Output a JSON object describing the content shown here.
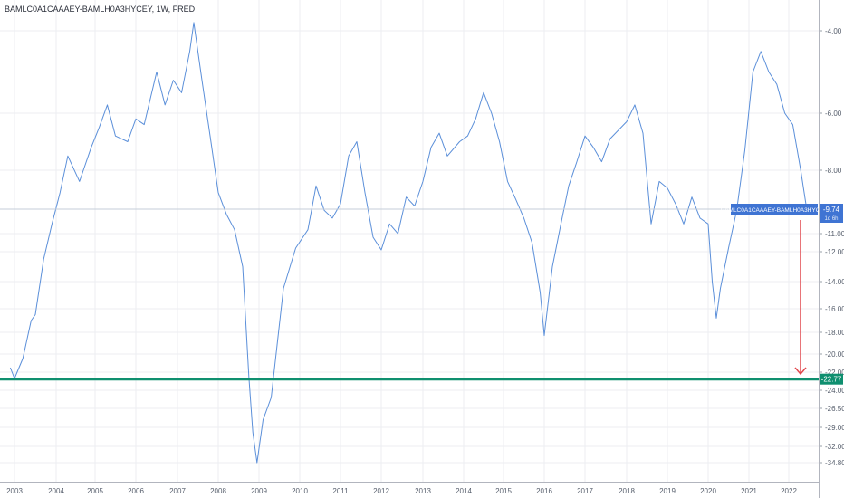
{
  "chart_data": {
    "type": "line",
    "title": "BAMLC0A1CAAAEY-BAMLH0A3HYCEY, 1W, FRED",
    "xlabel": "",
    "ylabel": "",
    "scale": "piecewise (axis tick spacing is non-linear)",
    "grid": true,
    "x_ticks": [
      "2003",
      "2004",
      "2005",
      "2006",
      "2007",
      "2008",
      "2009",
      "2010",
      "2011",
      "2012",
      "2013",
      "2014",
      "2015",
      "2016",
      "2017",
      "2018",
      "2019",
      "2020",
      "2021",
      "2022"
    ],
    "y_ticks": [
      "-4.00",
      "-6.00",
      "-8.00",
      "-9.74",
      "-11.00",
      "-12.00",
      "-14.00",
      "-16.00",
      "-18.00",
      "-20.00",
      "-22.00",
      "-22.77",
      "-24.00",
      "-26.50",
      "-29.00",
      "-32.00",
      "-34.80"
    ],
    "series": [
      {
        "color": "#5b8fd9",
        "x": [
          2002.9,
          2003.0,
          2003.2,
          2003.4,
          2003.5,
          2003.7,
          2003.9,
          2004.1,
          2004.3,
          2004.6,
          2004.9,
          2005.1,
          2005.3,
          2005.5,
          2005.8,
          2006.0,
          2006.2,
          2006.5,
          2006.7,
          2006.9,
          2007.1,
          2007.3,
          2007.4,
          2007.6,
          2007.8,
          2008.0,
          2008.2,
          2008.4,
          2008.6,
          2008.75,
          2008.85,
          2008.95,
          2009.1,
          2009.3,
          2009.6,
          2009.9,
          2010.2,
          2010.4,
          2010.6,
          2010.8,
          2011.0,
          2011.2,
          2011.4,
          2011.6,
          2011.8,
          2012.0,
          2012.2,
          2012.4,
          2012.6,
          2012.8,
          2013.0,
          2013.2,
          2013.4,
          2013.6,
          2013.9,
          2014.1,
          2014.3,
          2014.5,
          2014.7,
          2014.9,
          2015.1,
          2015.3,
          2015.5,
          2015.7,
          2015.9,
          2016.0,
          2016.2,
          2016.4,
          2016.6,
          2016.8,
          2017.0,
          2017.2,
          2017.4,
          2017.6,
          2017.8,
          2018.0,
          2018.2,
          2018.4,
          2018.6,
          2018.8,
          2019.0,
          2019.2,
          2019.4,
          2019.6,
          2019.8,
          2020.0,
          2020.1,
          2020.2,
          2020.3,
          2020.5,
          2020.7,
          2020.9,
          2021.1,
          2021.3,
          2021.5,
          2021.7,
          2021.9,
          2022.1,
          2022.3,
          2022.45
        ],
        "values": [
          -21.5,
          -22.7,
          -20.5,
          -17.0,
          -16.5,
          -12.5,
          -10.5,
          -9.0,
          -7.5,
          -8.5,
          -7.2,
          -6.5,
          -5.8,
          -6.8,
          -7.0,
          -6.2,
          -6.4,
          -5.0,
          -5.8,
          -5.2,
          -5.5,
          -4.5,
          -3.8,
          -5.2,
          -6.8,
          -9.0,
          -10.0,
          -10.8,
          -13.0,
          -22.5,
          -29.8,
          -34.8,
          -28.0,
          -25.0,
          -14.5,
          -11.8,
          -10.8,
          -8.7,
          -9.8,
          -10.2,
          -9.5,
          -7.5,
          -7.0,
          -9.0,
          -11.2,
          -11.9,
          -10.5,
          -11.0,
          -9.2,
          -9.6,
          -8.5,
          -7.2,
          -6.7,
          -7.5,
          -7.0,
          -6.8,
          -6.2,
          -5.5,
          -6.0,
          -7.0,
          -8.5,
          -9.3,
          -10.2,
          -11.5,
          -14.8,
          -18.3,
          -13.0,
          -10.6,
          -8.7,
          -7.7,
          -6.8,
          -7.2,
          -7.7,
          -6.9,
          -6.6,
          -6.3,
          -5.8,
          -6.7,
          -10.5,
          -8.5,
          -8.8,
          -9.5,
          -10.5,
          -9.2,
          -10.2,
          -10.5,
          -14.0,
          -16.8,
          -14.5,
          -11.8,
          -9.8,
          -7.3,
          -5.0,
          -4.5,
          -5.0,
          -5.3,
          -6.0,
          -6.4,
          -8.0,
          -9.74
        ]
      }
    ],
    "last_value_label": {
      "name": "BAMLC0A1CAAAEY-BAMLH0A3HYCEY",
      "value": "-9.74",
      "time": "1d 6h"
    },
    "horizontal_level": {
      "value": "-22.77",
      "color": "#0f8f6f"
    },
    "annotation_arrow": {
      "from_value": -9.74,
      "to_value": -22.0,
      "color": "#e0474c"
    }
  }
}
